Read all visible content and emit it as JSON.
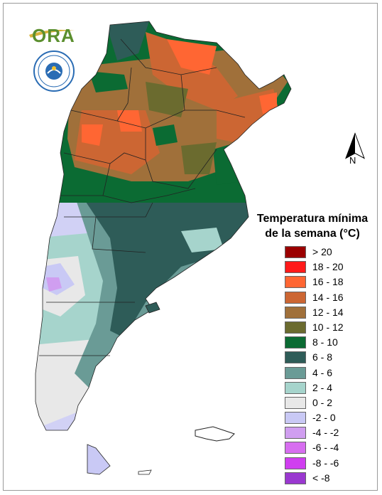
{
  "map": {
    "title_line1": "Temperatura mínima",
    "title_line2": "de la semana (°C)",
    "north_label": "N",
    "logo_text": "ORA",
    "legend": [
      {
        "label": "> 20",
        "color": "#9b0000"
      },
      {
        "label": "18 - 20",
        "color": "#ff1a1a"
      },
      {
        "label": "16 - 18",
        "color": "#ff6633"
      },
      {
        "label": "14 - 16",
        "color": "#cc6633"
      },
      {
        "label": "12 - 14",
        "color": "#a0703a"
      },
      {
        "label": "10 - 12",
        "color": "#6b6b2f"
      },
      {
        "label": "8 - 10",
        "color": "#0b6b33"
      },
      {
        "label": "6 - 8",
        "color": "#2e5c58"
      },
      {
        "label": "4 - 6",
        "color": "#6a9b96"
      },
      {
        "label": "2 - 4",
        "color": "#a6d4cc"
      },
      {
        "label": "0 - 2",
        "color": "#e8e8e8"
      },
      {
        "label": "-2 - 0",
        "color": "#c9c9f5"
      },
      {
        "label": "-4 - -2",
        "color": "#d09ef0"
      },
      {
        "label": "-6 - -4",
        "color": "#d76ef0"
      },
      {
        "label": "-8 - -6",
        "color": "#d03ef0"
      },
      {
        "label": "< -8",
        "color": "#9a38d0"
      }
    ]
  }
}
